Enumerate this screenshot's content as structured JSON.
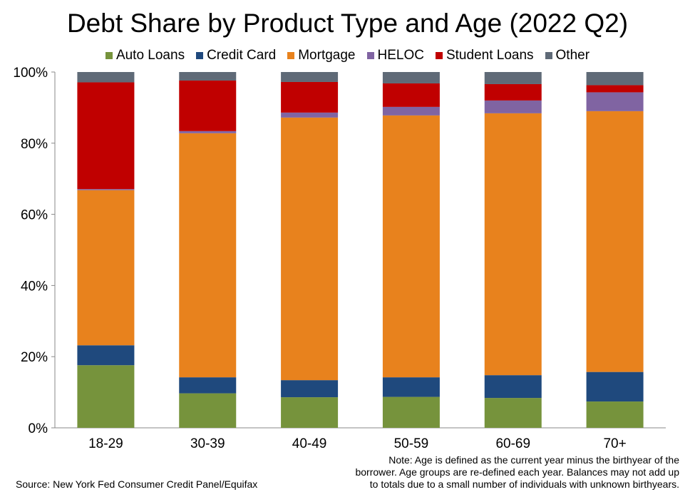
{
  "chart_data": {
    "type": "bar",
    "stacked": true,
    "title": "Debt Share by Product Type and Age (2022 Q2)",
    "categories": [
      "18-29",
      "30-39",
      "40-49",
      "50-59",
      "60-69",
      "70+"
    ],
    "series": [
      {
        "name": "Auto Loans",
        "color": "#76933c",
        "values": [
          17.6,
          9.7,
          8.6,
          8.7,
          8.4,
          7.4
        ]
      },
      {
        "name": "Credit Card",
        "color": "#1f497d",
        "values": [
          5.6,
          4.5,
          4.8,
          5.5,
          6.4,
          8.3
        ]
      },
      {
        "name": "Mortgage",
        "color": "#e8821d",
        "values": [
          43.6,
          68.6,
          73.8,
          73.6,
          73.6,
          73.3
        ]
      },
      {
        "name": "HELOC",
        "color": "#8064a2",
        "values": [
          0.3,
          0.6,
          1.4,
          2.4,
          3.6,
          5.3
        ]
      },
      {
        "name": "Student Loans",
        "color": "#c00000",
        "values": [
          30.0,
          14.2,
          8.6,
          6.6,
          4.6,
          2.0
        ]
      },
      {
        "name": "Other",
        "color": "#5f6a77",
        "values": [
          2.9,
          2.4,
          2.8,
          3.2,
          3.4,
          3.7
        ]
      }
    ],
    "ylim": [
      0,
      100
    ],
    "yticks": [
      "0%",
      "20%",
      "40%",
      "60%",
      "80%",
      "100%"
    ],
    "ytick_values": [
      0,
      20,
      40,
      60,
      80,
      100
    ],
    "grid": false,
    "legend_position": "top"
  },
  "note": [
    "Note: Age is defined as the current year minus the birthyear of the",
    "borrower. Age groups are re-defined each year. Balances may not add up",
    "to totals due to a small number of individuals with unknown birthyears."
  ],
  "source": "Source: New York Fed Consumer Credit Panel/Equifax"
}
